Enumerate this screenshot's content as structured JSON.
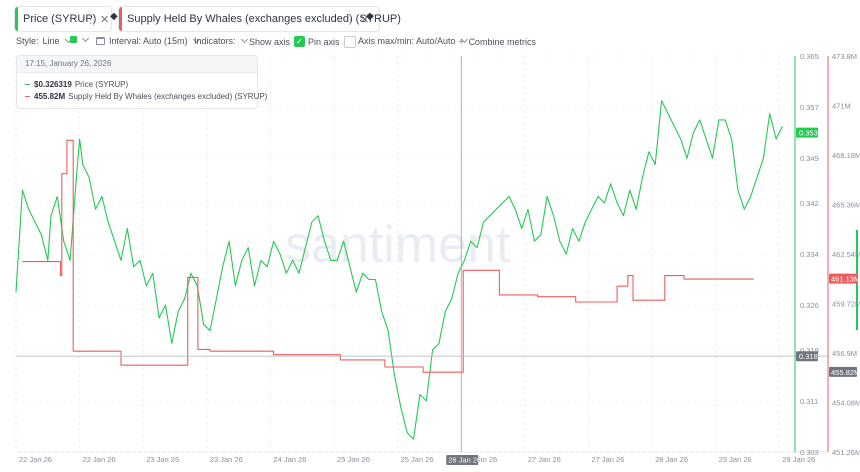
{
  "metrics": [
    {
      "label": "Price (SYRUP)",
      "color": "#26c953"
    },
    {
      "label": "Supply Held By Whales (exchanges excluded) (SYRUP)",
      "color": "#ee5d5d"
    }
  ],
  "toolbar": {
    "style_label": "Style:",
    "style_value": "Line",
    "interval_label": "Interval: Auto (15m)",
    "indicators_label": "Indicators:",
    "show_axis_label": "Show axis",
    "pin_axis_label": "Pin axis",
    "axis_maxmin_label": "Axis max/min: Auto/Auto",
    "combine_label": "Combine metrics"
  },
  "tooltip": {
    "datetime": "17:15, January 26, 2026",
    "rows": [
      {
        "value": "$0.326319",
        "label": "Price (SYRUP)",
        "color": "#26c953"
      },
      {
        "value": "455.82M",
        "label": "Supply Held By Whales (exchanges excluded) (SYRUP)",
        "color": "#ee5d5d"
      }
    ]
  },
  "watermark": "santiment",
  "colors": {
    "price": "#26c953",
    "whales": "#ee5d5d",
    "crosshair": "#9aa1ab",
    "grid": "#eceef1"
  },
  "chart_data": {
    "type": "line",
    "x_ticks": [
      "22 Jan 26",
      "22 Jan 26",
      "23 Jan 26",
      "23 Jan 26",
      "24 Jan 26",
      "25 Jan 26",
      "25 Jan 26",
      "26 Jan 26",
      "27 Jan 26",
      "27 Jan 26",
      "28 Jan 26",
      "29 Jan 26",
      "29 Jan 26"
    ],
    "x_ticks_pos": [
      0,
      1,
      2,
      3,
      4,
      5,
      6,
      7,
      8,
      9,
      10,
      11,
      12
    ],
    "xlim": [
      0,
      12.2
    ],
    "crosshair": {
      "x": 7.0,
      "label": "26 Jan 26",
      "price": 0.318,
      "whales": 455.82
    },
    "y_price": {
      "ticks": [
        0.365,
        0.357,
        0.349,
        0.342,
        0.334,
        0.326,
        0.319,
        0.311,
        0.303
      ],
      "ylim": [
        0.303,
        0.365
      ],
      "current": 0.353
    },
    "y_whales": {
      "ticks": [
        "473.8M",
        "471M",
        "468.18M",
        "465.36M",
        "462.54M",
        "459.72M",
        "456.9M",
        "454.08M",
        "451.26M"
      ],
      "ylim": [
        451.26,
        473.8
      ],
      "current": "461.13M",
      "crosshair_label": "455.82M"
    },
    "series": [
      {
        "name": "Price (SYRUP)",
        "axis": "price",
        "x": [
          0,
          0.1,
          0.2,
          0.3,
          0.4,
          0.5,
          0.55,
          0.65,
          0.75,
          0.85,
          0.95,
          1.0,
          1.05,
          1.15,
          1.25,
          1.35,
          1.45,
          1.55,
          1.65,
          1.75,
          1.85,
          1.95,
          2.05,
          2.15,
          2.25,
          2.35,
          2.45,
          2.55,
          2.65,
          2.75,
          2.85,
          2.95,
          3.05,
          3.15,
          3.25,
          3.35,
          3.45,
          3.55,
          3.65,
          3.75,
          3.85,
          3.95,
          4.05,
          4.15,
          4.25,
          4.35,
          4.45,
          4.55,
          4.65,
          4.75,
          4.85,
          4.95,
          5.05,
          5.15,
          5.25,
          5.35,
          5.45,
          5.55,
          5.65,
          5.75,
          5.85,
          5.95,
          6.05,
          6.15,
          6.25,
          6.35,
          6.45,
          6.55,
          6.65,
          6.75,
          6.85,
          6.95,
          7.05,
          7.15,
          7.25,
          7.35,
          7.45,
          7.55,
          7.65,
          7.75,
          7.85,
          7.95,
          8.05,
          8.15,
          8.25,
          8.35,
          8.45,
          8.55,
          8.65,
          8.75,
          8.85,
          8.95,
          9.05,
          9.15,
          9.25,
          9.35,
          9.45,
          9.55,
          9.65,
          9.75,
          9.85,
          9.95,
          10.05,
          10.15,
          10.25,
          10.35,
          10.45,
          10.55,
          10.65,
          10.75,
          10.85,
          10.95,
          11.05,
          11.15,
          11.25,
          11.35,
          11.45,
          11.55,
          11.65,
          11.75,
          11.85,
          11.95,
          12.05
        ],
        "y": [
          0.328,
          0.344,
          0.341,
          0.339,
          0.337,
          0.333,
          0.34,
          0.343,
          0.336,
          0.333,
          0.346,
          0.352,
          0.348,
          0.346,
          0.341,
          0.343,
          0.339,
          0.336,
          0.333,
          0.338,
          0.332,
          0.333,
          0.329,
          0.331,
          0.324,
          0.326,
          0.32,
          0.325,
          0.327,
          0.331,
          0.329,
          0.323,
          0.322,
          0.327,
          0.332,
          0.336,
          0.329,
          0.333,
          0.335,
          0.329,
          0.333,
          0.332,
          0.336,
          0.334,
          0.331,
          0.333,
          0.331,
          0.335,
          0.339,
          0.34,
          0.336,
          0.333,
          0.333,
          0.336,
          0.332,
          0.328,
          0.331,
          0.33,
          0.33,
          0.325,
          0.322,
          0.315,
          0.31,
          0.306,
          0.305,
          0.312,
          0.311,
          0.319,
          0.32,
          0.325,
          0.327,
          0.331,
          0.333,
          0.336,
          0.335,
          0.339,
          0.34,
          0.341,
          0.342,
          0.343,
          0.341,
          0.338,
          0.341,
          0.336,
          0.337,
          0.343,
          0.34,
          0.336,
          0.334,
          0.338,
          0.336,
          0.339,
          0.341,
          0.343,
          0.342,
          0.345,
          0.342,
          0.34,
          0.344,
          0.341,
          0.346,
          0.35,
          0.348,
          0.358,
          0.356,
          0.354,
          0.352,
          0.349,
          0.353,
          0.355,
          0.352,
          0.349,
          0.355,
          0.355,
          0.352,
          0.344,
          0.341,
          0.343,
          0.346,
          0.349,
          0.356,
          0.352,
          0.354
        ]
      },
      {
        "name": "Supply Held By Whales (exchanges excluded) (SYRUP)",
        "axis": "whales",
        "x": [
          0.1,
          0.7,
          0.7,
          0.72,
          0.72,
          0.8,
          0.8,
          0.9,
          0.9,
          1.65,
          1.65,
          2.7,
          2.7,
          2.86,
          2.86,
          3.05,
          3.05,
          4.05,
          4.05,
          5.1,
          5.1,
          5.8,
          5.8,
          6.4,
          6.4,
          7.03,
          7.03,
          7.6,
          7.6,
          8.2,
          8.2,
          8.8,
          8.8,
          9.45,
          9.45,
          9.62,
          9.62,
          9.7,
          9.7,
          10.2,
          10.2,
          10.5,
          10.5,
          11.6
        ],
        "y": [
          462.1,
          462.1,
          461.3,
          461.3,
          467.1,
          467.1,
          469.0,
          469.0,
          457.0,
          457.0,
          456.2,
          456.2,
          461.2,
          461.2,
          457.1,
          457.1,
          457.0,
          457.0,
          456.8,
          456.8,
          456.5,
          456.5,
          456.1,
          456.1,
          455.8,
          455.8,
          461.6,
          461.6,
          460.2,
          460.2,
          460.1,
          460.1,
          459.8,
          459.8,
          460.7,
          460.7,
          461.3,
          461.3,
          459.9,
          459.9,
          461.3,
          461.3,
          461.1,
          461.1
        ]
      }
    ]
  }
}
